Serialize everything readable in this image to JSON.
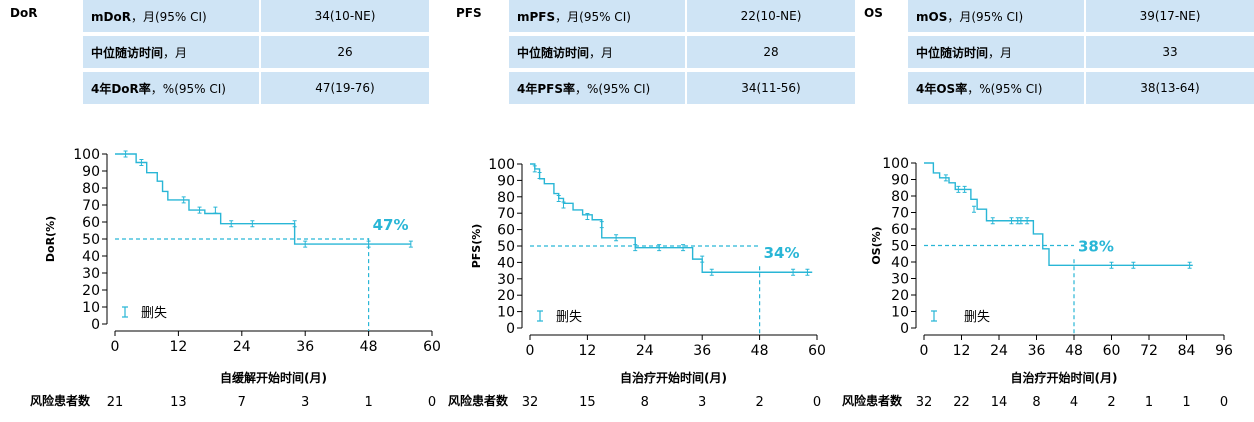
{
  "panels": [
    {
      "label": "DoR",
      "rows": [
        {
          "bold": "mDoR",
          "rest": "，月(95% CI)",
          "value": "34(10-NE)"
        },
        {
          "bold": "中位随访时间",
          "rest": "，月",
          "value": "26"
        },
        {
          "bold": "4年DoR率",
          "rest": "，%(95% CI)",
          "value": "47(19-76)"
        }
      ],
      "risk_label": "风险患者数",
      "risk_counts": [
        "21",
        "13",
        "7",
        "3",
        "1",
        "0"
      ]
    },
    {
      "label": "PFS",
      "rows": [
        {
          "bold": "mPFS",
          "rest": "，月(95% CI)",
          "value": "22(10-NE)"
        },
        {
          "bold": "中位随访时间",
          "rest": "，月",
          "value": "28"
        },
        {
          "bold": "4年PFS率",
          "rest": "，%(95% CI)",
          "value": "34(11-56)"
        }
      ],
      "risk_label": "风险患者数",
      "risk_counts": [
        "32",
        "15",
        "8",
        "3",
        "2",
        "0"
      ]
    },
    {
      "label": "OS",
      "rows": [
        {
          "bold": "mOS",
          "rest": "，月(95% CI)",
          "value": "39(17-NE)"
        },
        {
          "bold": "中位随访时间",
          "rest": "，月",
          "value": "33"
        },
        {
          "bold": "4年OS率",
          "rest": "，%(95% CI)",
          "value": "38(13-64)"
        }
      ],
      "risk_label": "风险患者数",
      "risk_counts": [
        "32",
        "22",
        "14",
        "8",
        "4",
        "2",
        "1",
        "1",
        "0"
      ]
    }
  ],
  "chart_data": [
    {
      "type": "line",
      "step": true,
      "ylabel": "DoR(%)",
      "xlabel": "自缓解开始时间(月)",
      "xlim": [
        0,
        60
      ],
      "ylim": [
        0,
        100
      ],
      "xticks": [
        0,
        12,
        24,
        36,
        48,
        60
      ],
      "yticks": [
        0,
        10,
        20,
        30,
        40,
        50,
        60,
        70,
        80,
        90,
        100
      ],
      "median_line": 50,
      "landmark_x": 48,
      "landmark_label": "47%",
      "legend": "删失",
      "color": "#29b6d6",
      "series": [
        {
          "x": [
            0,
            4,
            6,
            8,
            9,
            10,
            14,
            17,
            20,
            34,
            56
          ],
          "y": [
            100,
            95,
            89,
            84,
            78,
            73,
            67,
            65,
            59,
            47,
            47
          ]
        }
      ],
      "censored": [
        [
          2,
          100
        ],
        [
          5,
          95
        ],
        [
          13,
          73
        ],
        [
          16,
          67
        ],
        [
          19,
          67
        ],
        [
          22,
          59
        ],
        [
          26,
          59
        ],
        [
          34,
          59
        ],
        [
          36,
          47
        ],
        [
          48,
          47
        ],
        [
          56,
          47
        ]
      ]
    },
    {
      "type": "line",
      "step": true,
      "ylabel": "PFS(%)",
      "xlabel": "自治疗开始时间(月)",
      "xlim": [
        0,
        60
      ],
      "ylim": [
        0,
        100
      ],
      "xticks": [
        0,
        12,
        24,
        36,
        48,
        60
      ],
      "yticks": [
        0,
        10,
        20,
        30,
        40,
        50,
        60,
        70,
        80,
        90,
        100
      ],
      "median_line": 50,
      "landmark_x": 48,
      "landmark_label": "34%",
      "legend": "删失",
      "color": "#29b6d6",
      "series": [
        {
          "x": [
            0,
            1,
            2,
            3,
            5,
            6,
            7,
            9,
            11,
            13,
            15,
            22,
            34,
            36,
            59
          ],
          "y": [
            100,
            97,
            91,
            88,
            82,
            79,
            76,
            72,
            69,
            66,
            55,
            49,
            42,
            34,
            34
          ]
        }
      ],
      "censored": [
        [
          1,
          97
        ],
        [
          2,
          93
        ],
        [
          6,
          79
        ],
        [
          7,
          75
        ],
        [
          12,
          68
        ],
        [
          15,
          63
        ],
        [
          18,
          55
        ],
        [
          22,
          49
        ],
        [
          27,
          49
        ],
        [
          32,
          49
        ],
        [
          36,
          42
        ],
        [
          38,
          34
        ],
        [
          55,
          34
        ],
        [
          58,
          34
        ]
      ]
    },
    {
      "type": "line",
      "step": true,
      "ylabel": "OS(%)",
      "xlabel": "自治疗开始时间(月)",
      "xlim": [
        0,
        96
      ],
      "ylim": [
        0,
        100
      ],
      "xticks": [
        0,
        12,
        24,
        36,
        48,
        60,
        72,
        84,
        96
      ],
      "yticks": [
        0,
        10,
        20,
        30,
        40,
        50,
        60,
        70,
        80,
        90,
        100
      ],
      "median_line": 50,
      "landmark_x": 48,
      "landmark_label": "38%",
      "legend": "删失",
      "color": "#29b6d6",
      "series": [
        {
          "x": [
            0,
            3,
            5,
            8,
            10,
            15,
            17,
            20,
            35,
            38,
            40,
            86
          ],
          "y": [
            100,
            94,
            91,
            88,
            84,
            78,
            72,
            65,
            57,
            48,
            38,
            38
          ]
        }
      ],
      "censored": [
        [
          7,
          91
        ],
        [
          11,
          84
        ],
        [
          13,
          84
        ],
        [
          16,
          72
        ],
        [
          22,
          65
        ],
        [
          28,
          65
        ],
        [
          30,
          65
        ],
        [
          31,
          65
        ],
        [
          33,
          65
        ],
        [
          60,
          38
        ],
        [
          67,
          38
        ],
        [
          85,
          38
        ]
      ]
    }
  ]
}
